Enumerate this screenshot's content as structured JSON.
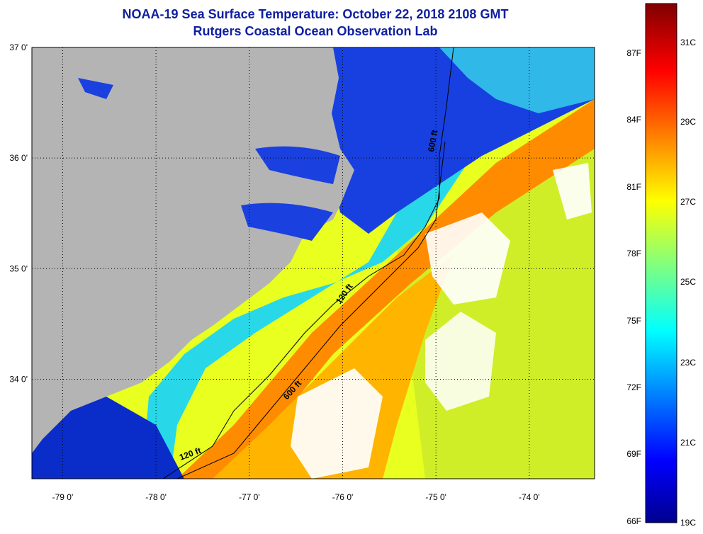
{
  "title": "NOAA-19 Sea Surface Temperature:  October 22, 2018 2108 GMT",
  "subtitle": "Rutgers Coastal Ocean Observation Lab",
  "map": {
    "lat_labels": [
      {
        "lat": 37,
        "label": "37 0'"
      },
      {
        "lat": 36,
        "label": "36 0'"
      },
      {
        "lat": 35,
        "label": "35 0'"
      },
      {
        "lat": 34,
        "label": "34 0'"
      }
    ],
    "lon_labels": [
      {
        "lon": -79,
        "label": "-79 0'"
      },
      {
        "lon": -78,
        "label": "-78 0'"
      },
      {
        "lon": -77,
        "label": "-77 0'"
      },
      {
        "lon": -76,
        "label": "-76 0'"
      },
      {
        "lon": -75,
        "label": "-75 0'"
      },
      {
        "lon": -74,
        "label": "-74 0'"
      }
    ],
    "contour_labels": [
      "600 ft",
      "120 ft",
      "600 ft",
      "120 ft"
    ],
    "colors": {
      "land": "#b4b4b4",
      "cloud": "#ffffff",
      "cold": "#0a28c8",
      "warm": "#ff8a00",
      "title": "#1020a0"
    }
  },
  "colorbar": {
    "fahrenheit": [
      "87F",
      "84F",
      "81F",
      "78F",
      "75F",
      "72F",
      "69F",
      "66F"
    ],
    "celsius": [
      "31C",
      "29C",
      "27C",
      "25C",
      "23C",
      "21C",
      "19C"
    ]
  }
}
